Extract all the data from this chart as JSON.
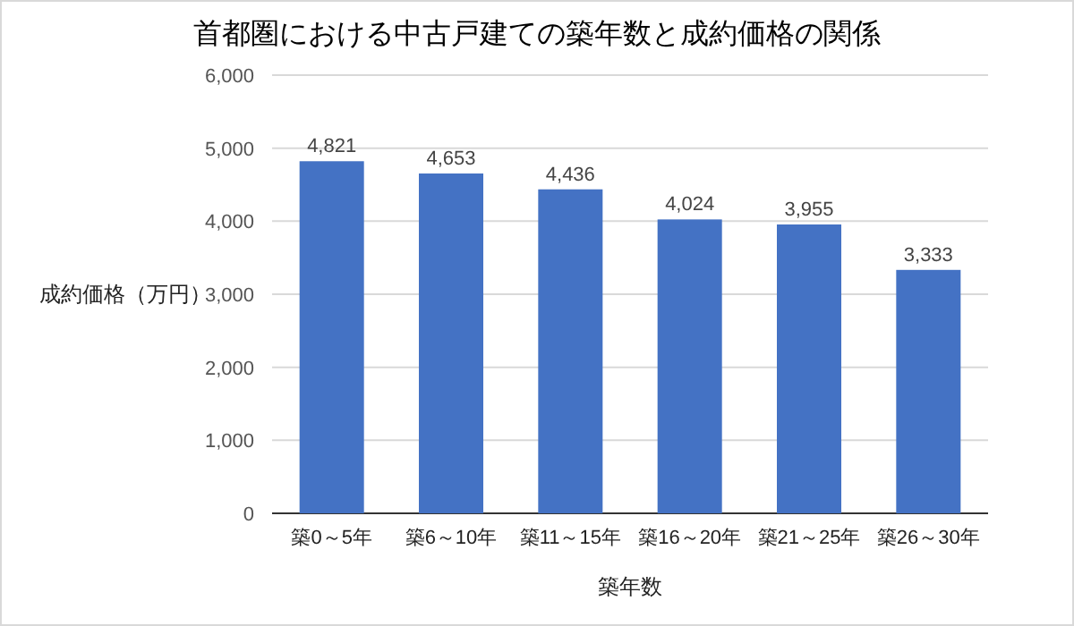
{
  "chart_data": {
    "type": "bar",
    "title": "首都圏における中古戸建ての築年数と成約価格の関係",
    "xlabel": "築年数",
    "ylabel": "成約価格（万円）",
    "categories": [
      "築0～5年",
      "築6～10年",
      "築11～15年",
      "築16～20年",
      "築21～25年",
      "築26～30年"
    ],
    "values": [
      4821,
      4653,
      4436,
      4024,
      3955,
      3333
    ],
    "value_labels": [
      "4,821",
      "4,653",
      "4,436",
      "4,024",
      "3,955",
      "3,333"
    ],
    "color": "#4472c4",
    "ylim": [
      0,
      6000
    ],
    "yticks": [
      {
        "value": 0,
        "label": "0"
      },
      {
        "value": 1000,
        "label": "1,000"
      },
      {
        "value": 2000,
        "label": "2,000"
      },
      {
        "value": 3000,
        "label": "3,000"
      },
      {
        "value": 4000,
        "label": "4,000"
      },
      {
        "value": 5000,
        "label": "5,000"
      },
      {
        "value": 6000,
        "label": "6,000"
      }
    ],
    "grid": "y"
  }
}
